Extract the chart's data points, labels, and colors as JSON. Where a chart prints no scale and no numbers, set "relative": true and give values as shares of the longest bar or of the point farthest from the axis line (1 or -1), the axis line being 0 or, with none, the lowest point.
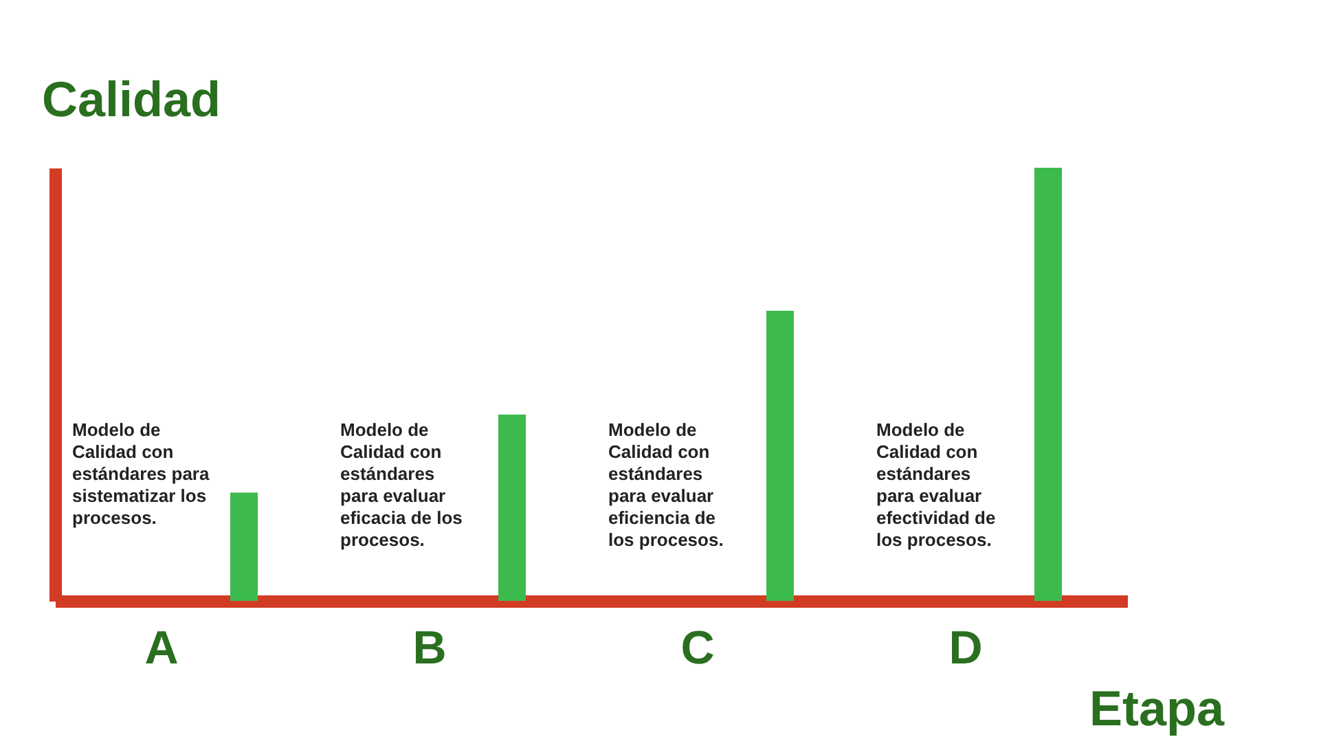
{
  "chart_data": {
    "type": "bar",
    "relative": true,
    "ylabel": "Calidad",
    "xlabel": "Etapa",
    "categories": [
      "A",
      "B",
      "C",
      "D"
    ],
    "values": [
      0.25,
      0.43,
      0.67,
      1
    ],
    "color": "#3dba4e",
    "annotations": [
      "Modelo de\nCalidad con\nestándares para\nsistematizar los\nprocesos.",
      "Modelo de\nCalidad con\nestándares\npara evaluar\neficacia de los\nprocesos.",
      "Modelo de\nCalidad con\nestándares\npara evaluar\neficiencia de\nlos procesos.",
      "Modelo de\nCalidad con\nestándares\npara evaluar\nefectividad de\nlos procesos."
    ],
    "grid": false
  }
}
